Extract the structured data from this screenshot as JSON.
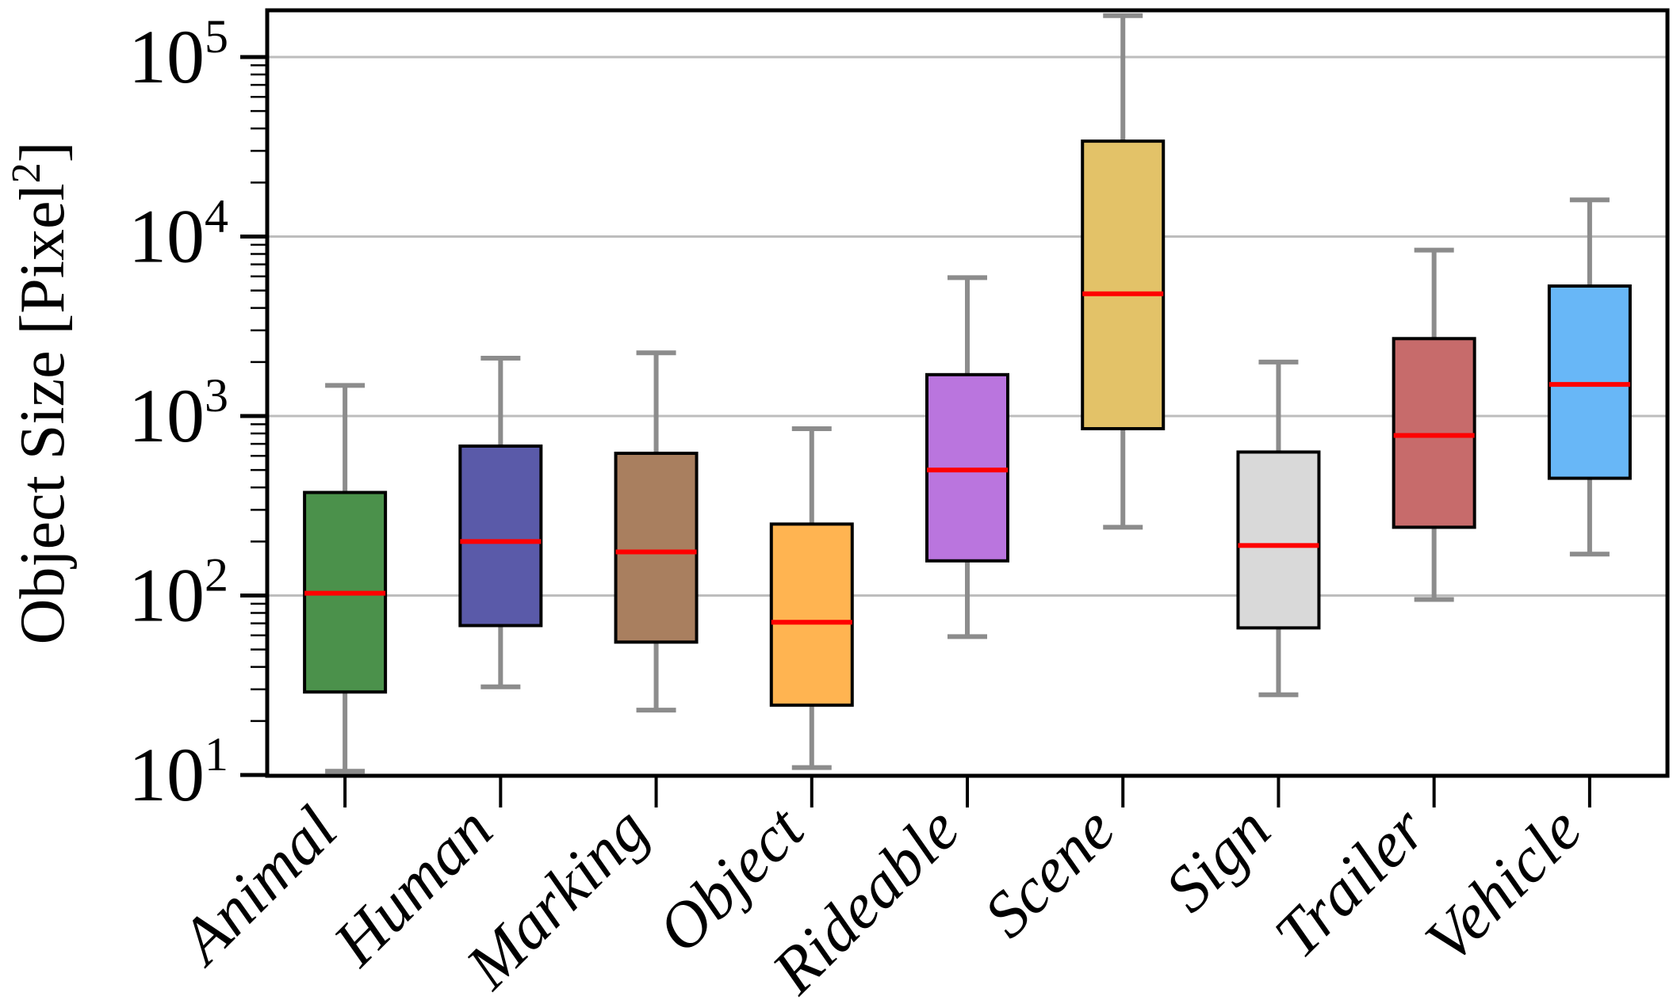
{
  "figure": {
    "ylabel": {
      "prefix": "Object Size [Pixel",
      "exponent": "2",
      "suffix": "]"
    }
  },
  "chart_data": {
    "type": "box",
    "title": "",
    "xlabel": "",
    "ylabel": "Object Size [Pixel^2]",
    "y_scale": "log",
    "ylim": [
      10,
      180000
    ],
    "y_major_ticks": [
      100000,
      10000,
      1000,
      100,
      10
    ],
    "grid": "horizontal-major",
    "legend": "none",
    "categories": [
      "Animal",
      "Human",
      "Marking",
      "Object",
      "Rideable",
      "Scene",
      "Sign",
      "Trailer",
      "Vehicle"
    ],
    "boxes": [
      {
        "category": "Animal",
        "color": "#4b914b",
        "whisker_low": 10.5,
        "q1": 29,
        "median": 103,
        "q3": 375,
        "whisker_high": 1480
      },
      {
        "category": "Human",
        "color": "#5a5aa9",
        "whisker_low": 31,
        "q1": 68,
        "median": 200,
        "q3": 680,
        "whisker_high": 2100
      },
      {
        "category": "Marking",
        "color": "#a97f5f",
        "whisker_low": 23,
        "q1": 55,
        "median": 175,
        "q3": 620,
        "whisker_high": 2250
      },
      {
        "category": "Object",
        "color": "#ffb451",
        "whisker_low": 11,
        "q1": 24.5,
        "median": 71,
        "q3": 250,
        "whisker_high": 850
      },
      {
        "category": "Rideable",
        "color": "#ba75de",
        "whisker_low": 59,
        "q1": 156,
        "median": 500,
        "q3": 1700,
        "whisker_high": 5900
      },
      {
        "category": "Scene",
        "color": "#e3c268",
        "whisker_low": 240,
        "q1": 850,
        "median": 4800,
        "q3": 34000,
        "whisker_high": 170000
      },
      {
        "category": "Sign",
        "color": "#d9d9d9",
        "whisker_low": 28,
        "q1": 66,
        "median": 190,
        "q3": 630,
        "whisker_high": 2000
      },
      {
        "category": "Trailer",
        "color": "#c76b6b",
        "whisker_low": 95,
        "q1": 240,
        "median": 780,
        "q3": 2700,
        "whisker_high": 8400
      },
      {
        "category": "Vehicle",
        "color": "#68b7f7",
        "whisker_low": 170,
        "q1": 450,
        "median": 1500,
        "q3": 5300,
        "whisker_high": 16000
      }
    ],
    "style": {
      "median_color": "#ff0000",
      "whisker_color": "#8c8c8c",
      "box_edge_color": "#000000",
      "grid_color": "#bdbdbd",
      "tick_color": "#000000",
      "background": "#ffffff"
    }
  }
}
